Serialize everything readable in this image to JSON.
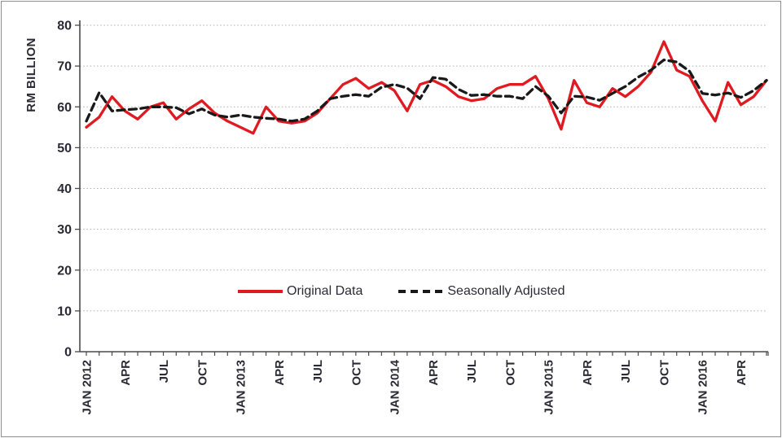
{
  "chart_data": {
    "type": "line",
    "title": "",
    "ylabel": "RM BILLION",
    "xlabel": "",
    "ylim": [
      0,
      80
    ],
    "y_ticks": [
      0,
      10,
      20,
      30,
      40,
      50,
      60,
      70,
      80
    ],
    "grid": "horizontal-dotted",
    "grid_color": "#b3b3b3",
    "axis_color": "#4a4a4a",
    "text_color": "#2b2b35",
    "legend_position": "inside-bottom-center",
    "x_tick_labels": [
      "JAN 2012",
      "APR",
      "JUL",
      "OCT",
      "JAN 2013",
      "APR",
      "JUL",
      "OCT",
      "JAN 2014",
      "APR",
      "JUL",
      "OCT",
      "JAN 2015",
      "APR",
      "JUL",
      "OCT",
      "JAN 2016",
      "APR"
    ],
    "x_tick_label_every_n_months": 3,
    "categories": [
      "JAN 2012",
      "FEB 2012",
      "MAR 2012",
      "APR 2012",
      "MAY 2012",
      "JUN 2012",
      "JUL 2012",
      "AUG 2012",
      "SEP 2012",
      "OCT 2012",
      "NOV 2012",
      "DEC 2012",
      "JAN 2013",
      "FEB 2013",
      "MAR 2013",
      "APR 2013",
      "MAY 2013",
      "JUN 2013",
      "JUL 2013",
      "AUG 2013",
      "SEP 2013",
      "OCT 2013",
      "NOV 2013",
      "DEC 2013",
      "JAN 2014",
      "FEB 2014",
      "MAR 2014",
      "APR 2014",
      "MAY 2014",
      "JUN 2014",
      "JUL 2014",
      "AUG 2014",
      "SEP 2014",
      "OCT 2014",
      "NOV 2014",
      "DEC 2014",
      "JAN 2015",
      "FEB 2015",
      "MAR 2015",
      "APR 2015",
      "MAY 2015",
      "JUN 2015",
      "JUL 2015",
      "AUG 2015",
      "SEP 2015",
      "OCT 2015",
      "NOV 2015",
      "DEC 2015",
      "JAN 2016",
      "FEB 2016",
      "MAR 2016",
      "APR 2016",
      "MAY 2016",
      "JUN 2016"
    ],
    "series": [
      {
        "name": "Original Data",
        "color": "#df1b21",
        "dash": false,
        "values": [
          55,
          57.5,
          62.5,
          59,
          57,
          60,
          61,
          57,
          59.5,
          61.5,
          58.5,
          56.5,
          55,
          53.5,
          60,
          56.5,
          56,
          56.5,
          58.5,
          62,
          65.5,
          67,
          64.5,
          66,
          64,
          59,
          65.5,
          66.5,
          65,
          62.5,
          61.5,
          62,
          64.5,
          65.5,
          65.5,
          67.5,
          62,
          54.5,
          66.5,
          61,
          60,
          64.5,
          62.5,
          65,
          68.5,
          76,
          69,
          67.5,
          61.5,
          56.5,
          66,
          60.5,
          62.5,
          66.5
        ]
      },
      {
        "name": "Seasonally Adjusted",
        "color": "#191919",
        "dash": true,
        "values": [
          56.5,
          63.5,
          59,
          59.3,
          59.5,
          60,
          60,
          59.8,
          58.3,
          59.5,
          58,
          57.5,
          58,
          57.5,
          57.2,
          57,
          56.5,
          57,
          59,
          62,
          62.6,
          63,
          62.6,
          64.8,
          65.5,
          64.6,
          62,
          67.2,
          66.8,
          64.3,
          62.8,
          63,
          62.6,
          62.6,
          62,
          65,
          62.6,
          58.5,
          62.6,
          62.4,
          61.6,
          63.3,
          65,
          67.3,
          69,
          71.5,
          71,
          68.7,
          63.3,
          62.9,
          63.4,
          62.3,
          64,
          66.5
        ]
      }
    ]
  }
}
